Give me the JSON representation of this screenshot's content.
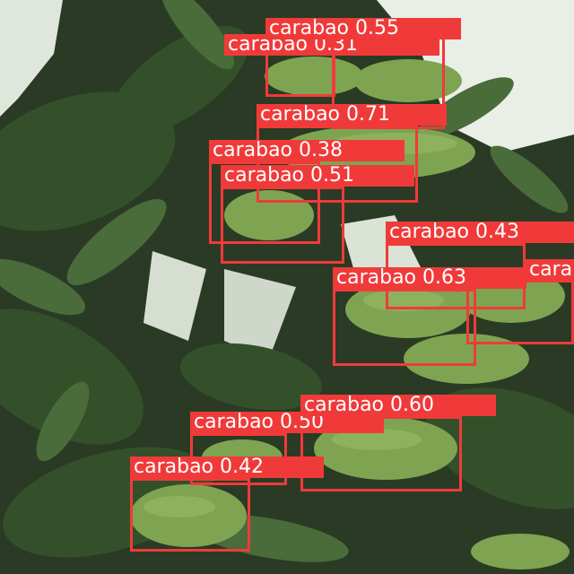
{
  "image": {
    "subject": "carabao mangoes on tree",
    "colors": {
      "box": "#f03a3a",
      "label_text": "#ffffff",
      "foliage": "#2e4226",
      "sky": "#e9eee6",
      "mango": "#7ea452"
    }
  },
  "detections": [
    {
      "label": "carabao 0.55"
    },
    {
      "label": "carabao 0.31"
    },
    {
      "label": "carabao 0.71"
    },
    {
      "label": "carabao 0.38"
    },
    {
      "label": "carabao 0.51"
    },
    {
      "label": "carabao 0.43"
    },
    {
      "label": "carabao 0.63"
    },
    {
      "label": "carabao"
    },
    {
      "label": "carabao 0.60"
    },
    {
      "label": "carabao 0.50"
    },
    {
      "label": "carabao 0.42"
    }
  ]
}
